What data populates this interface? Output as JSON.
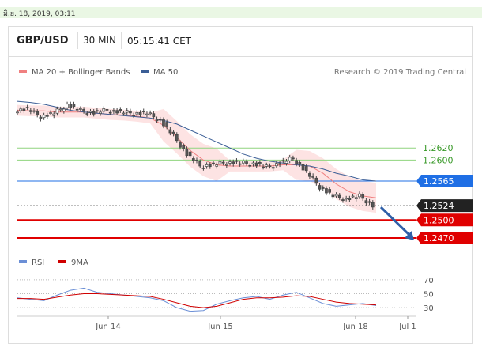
{
  "date_bar": {
    "text": "มิ.ย. 18, 2019, 03:11"
  },
  "header": {
    "pair": "GBP/USD",
    "timeframe": "30 MIN",
    "time": "05:15:41 CET"
  },
  "legend": {
    "ma20_label": "MA 20 + Bollinger Bands",
    "ma50_label": "MA 50",
    "credit": "Research © 2019 Trading Central"
  },
  "rsi_legend": {
    "rsi_label": "RSI",
    "ma9_label": "9MA"
  },
  "colors": {
    "ma20": "#f08080",
    "bands": "#fde3e3",
    "ma50": "#3b5e96",
    "candle": "#444444",
    "support": "#e00000",
    "resistance": "#8fd47e",
    "pivot": "#1f6fe5",
    "current": "#222222",
    "rsi": "#6b8fd6",
    "rsi_ma": "#d00000"
  },
  "chart_data": {
    "type": "line",
    "title": "GBP/USD",
    "x_ticks": [
      "Jun 14",
      "Jun 15",
      "Jun 18",
      "Jul 1"
    ],
    "ylim": [
      1.2445,
      1.2735
    ],
    "series": [
      {
        "name": "MA 50",
        "values": [
          1.2698,
          1.2696,
          1.2693,
          1.2688,
          1.2683,
          1.268,
          1.2678,
          1.2676,
          1.2674,
          1.2672,
          1.267,
          1.2666,
          1.266,
          1.265,
          1.264,
          1.263,
          1.262,
          1.261,
          1.2603,
          1.2598,
          1.2595,
          1.2592,
          1.259,
          1.2585,
          1.2578,
          1.2573,
          1.2567,
          1.2565
        ]
      },
      {
        "name": "MA 20",
        "values": [
          1.2683,
          1.2682,
          1.2682,
          1.268,
          1.268,
          1.268,
          1.2678,
          1.2676,
          1.2675,
          1.2673,
          1.267,
          1.2658,
          1.2638,
          1.2616,
          1.26,
          1.2592,
          1.259,
          1.259,
          1.259,
          1.259,
          1.2592,
          1.2592,
          1.259,
          1.2578,
          1.256,
          1.2547,
          1.254,
          1.2537
        ]
      },
      {
        "name": "Price",
        "values": [
          1.2683,
          1.2685,
          1.2672,
          1.2678,
          1.2692,
          1.2682,
          1.2679,
          1.2683,
          1.268,
          1.2678,
          1.2678,
          1.2666,
          1.264,
          1.261,
          1.259,
          1.2592,
          1.2596,
          1.2595,
          1.2594,
          1.2588,
          1.2595,
          1.2603,
          1.258,
          1.2555,
          1.254,
          1.2535,
          1.254,
          1.2524
        ]
      }
    ],
    "levels": [
      {
        "label": "1.2620",
        "value": 1.262,
        "kind": "resistance"
      },
      {
        "label": "1.2600",
        "value": 1.26,
        "kind": "resistance"
      },
      {
        "label": "1.2565",
        "value": 1.2565,
        "kind": "pivot"
      },
      {
        "label": "1.2524",
        "value": 1.2524,
        "kind": "current"
      },
      {
        "label": "1.2500",
        "value": 1.25,
        "kind": "support"
      },
      {
        "label": "1.2470",
        "value": 1.247,
        "kind": "support"
      }
    ],
    "rsi": {
      "ticks": [
        "70",
        "50",
        "30"
      ],
      "ylim": [
        20,
        80
      ],
      "series": [
        {
          "name": "RSI",
          "values": [
            44,
            42,
            40,
            48,
            55,
            58,
            52,
            50,
            48,
            46,
            44,
            40,
            30,
            25,
            26,
            35,
            40,
            44,
            46,
            42,
            48,
            52,
            44,
            36,
            32,
            34,
            36,
            33
          ]
        },
        {
          "name": "9MA",
          "values": [
            43,
            43,
            42,
            45,
            48,
            50,
            50,
            49,
            48,
            47,
            46,
            42,
            37,
            32,
            30,
            32,
            37,
            42,
            44,
            44,
            45,
            47,
            46,
            42,
            38,
            36,
            35,
            34
          ]
        }
      ]
    }
  }
}
